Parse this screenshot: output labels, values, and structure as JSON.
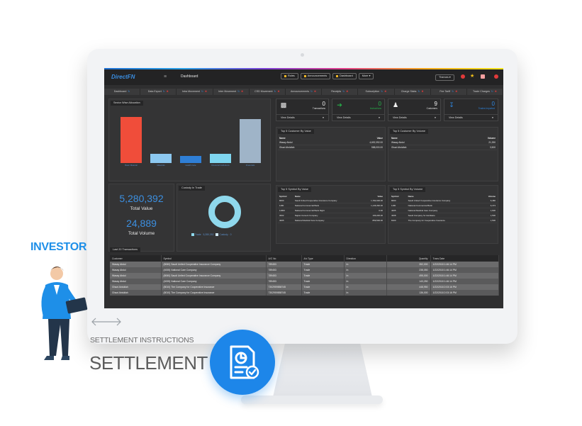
{
  "app": {
    "logo": "DirectFN",
    "page_title": "Dashboard",
    "top_pills": [
      "Roles",
      "Announcements",
      "Dashboard",
      "More"
    ],
    "themes_label": "Themes"
  },
  "tabs": [
    {
      "label": "Dashboard"
    },
    {
      "label": "Data Export"
    },
    {
      "label": "Intra Movement"
    },
    {
      "label": "Inter Movement"
    },
    {
      "label": "CSD Movement"
    },
    {
      "label": "Announcements"
    },
    {
      "label": "Receipts"
    },
    {
      "label": "Subscription"
    },
    {
      "label": "Charge Slabs"
    },
    {
      "label": "Fee Tariff"
    },
    {
      "label": "Trade Charges"
    }
  ],
  "sector": {
    "title": "Sector Wise Allocation",
    "colors": [
      "#f04d3a",
      "#8cc8f0",
      "#2f7fd6",
      "#7fd6f0",
      "#9fb4c8"
    ],
    "bars": [
      {
        "label": "Basic Material",
        "value": 0.83
      },
      {
        "label": "Materials",
        "value": 0.17
      },
      {
        "label": "Health Care",
        "value": 0.13
      },
      {
        "label": "Financial Institutions",
        "value": 0.17
      },
      {
        "label": "Financials",
        "value": 0.8
      }
    ]
  },
  "kpi": {
    "total_value": "5,280,392",
    "total_value_label": "Total Value",
    "total_volume": "24,889",
    "total_volume_label": "Total Volume"
  },
  "custody": {
    "title": "Custody In Trade",
    "legend": [
      "Trade",
      "5,280,392",
      "Custody",
      "0"
    ]
  },
  "cards": [
    {
      "count": "0",
      "label": "Transactions",
      "footer": "View Details"
    },
    {
      "count": "0",
      "label": "Instructions",
      "footer": "View Details"
    },
    {
      "count": "9",
      "label": "Customers",
      "footer": "View Details"
    },
    {
      "count": "0",
      "label": "Trades Imported",
      "footer": "View Details"
    }
  ],
  "top5_customer_value": {
    "title": "Top 5 Customer By Value",
    "headers": [
      "Name",
      "Value"
    ],
    "rows": [
      [
        "Wasay Abdul",
        "4,692,392.00"
      ],
      [
        "Ghazi Abdullah",
        "588,000.00"
      ]
    ]
  },
  "top5_customer_volume": {
    "title": "Top 5 Customer By Volume",
    "headers": [
      "Name",
      "Volume"
    ],
    "rows": [
      [
        "Wasay Abdul",
        "21,390"
      ],
      [
        "Ghazi Abdullah",
        "3,500"
      ]
    ]
  },
  "top5_symbol_value": {
    "title": "Top 5 Symbol By Value",
    "headers": [
      "Symbol",
      "Name",
      "Value"
    ],
    "rows": [
      [
        "8060",
        "Saudi United Cooperative Insurance Company",
        "1,782,000.00"
      ],
      [
        "1180",
        "National Commercial Bank",
        "1,146,392.00"
      ],
      [
        "11800",
        "National Commercial Bank Right",
        "0.00"
      ],
      [
        "3002",
        "Najran Cement Company",
        "196,000.00"
      ],
      [
        "4005",
        "National Medical Care Company",
        "859,500.00"
      ]
    ]
  },
  "top5_symbol_volume": {
    "title": "Top 5 Symbol By Volume",
    "headers": [
      "Symbol",
      "Name",
      "Volume"
    ],
    "rows": [
      [
        "8060",
        "Saudi United Cooperative Insurance Company",
        "6,480"
      ],
      [
        "1180",
        "National Commercial Bank",
        "6,473"
      ],
      [
        "4005",
        "National Medical Care Company",
        "1,600"
      ],
      [
        "4008",
        "Saudi Company for Hardware",
        "1,500"
      ],
      [
        "8100",
        "The Company for Cooperative Insurance",
        "1,500"
      ]
    ]
  },
  "transactions": {
    "title": "Last 20 Transactions",
    "headers": [
      "Customer",
      "Symbol",
      "A/C No",
      "A/c Type",
      "Direction",
      "Quantity",
      "Trans Date"
    ],
    "rows": [
      [
        "Wasay Abdul",
        "(8060) Saudi United Cooperative Insurance Company",
        "789453",
        "Trade",
        "In",
        "352,000",
        "1/22/2018 1:46:14 PM"
      ],
      [
        "Wasay Abdul",
        "(4005) National Care Company",
        "789453",
        "Trade",
        "In",
        "238,050",
        "1/22/2018 1:46:14 PM"
      ],
      [
        "Wasay Abdul",
        "(8060) Saudi United Cooperative Insurance Company",
        "789453",
        "Trade",
        "In",
        "495,000",
        "1/22/2018 1:46:14 PM"
      ],
      [
        "Wasay Abdul",
        "(4005) National Care Company",
        "789453",
        "Trade",
        "In",
        "143,250",
        "1/22/2018 1:46:14 PM"
      ],
      [
        "Ghazi Abdullah",
        "(8010) The Company for Cooperative Insurance",
        "7302959858745",
        "Trade",
        "In",
        "448,950",
        "1/22/2018 2:03:16 PM"
      ],
      [
        "Ghazi Abdullah",
        "(8010) The Company for Cooperative Insurance",
        "7302959858745",
        "Trade",
        "In",
        "136,000",
        "1/22/2018 2:03:16 PM"
      ]
    ]
  },
  "overlay": {
    "investor_label": "INVESTOR",
    "settlement_sub": "SETTLEMENT INSTRUCTIONS",
    "settlement_main": "SETTLEMENT"
  }
}
